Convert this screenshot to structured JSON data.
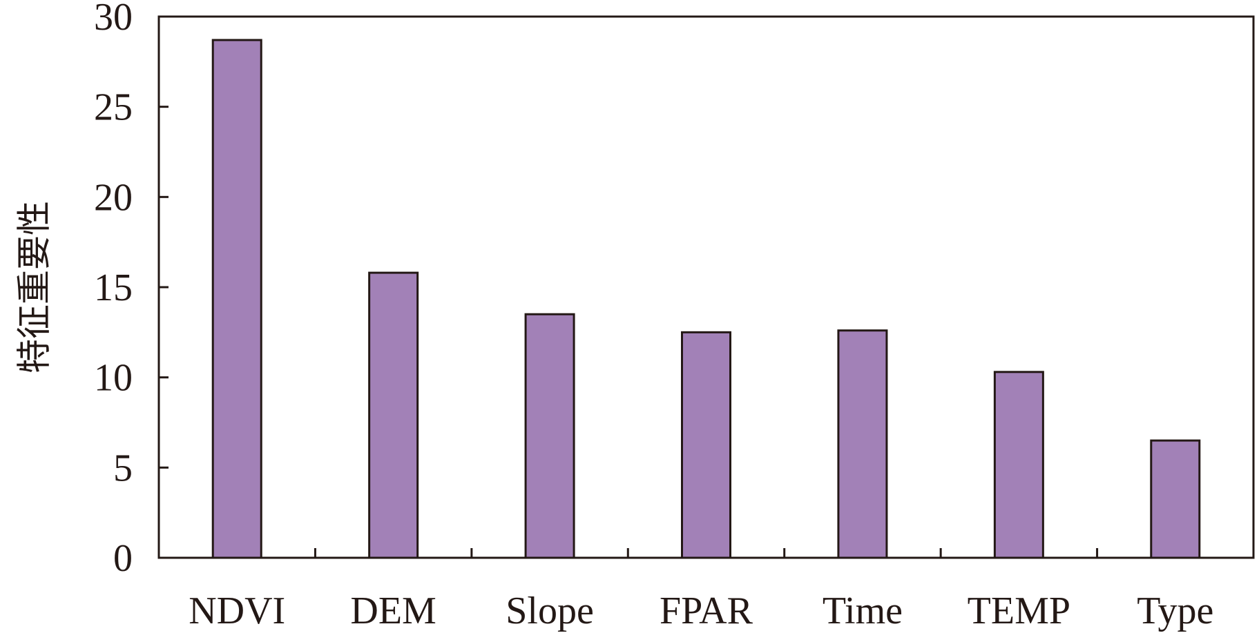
{
  "chart_data": {
    "type": "bar",
    "title": "",
    "xlabel": "",
    "ylabel": "特征重要性",
    "categories": [
      "NDVI",
      "DEM",
      "Slope",
      "FPAR",
      "Time",
      "TEMP",
      "Type"
    ],
    "values": [
      28.7,
      15.8,
      13.5,
      12.5,
      12.6,
      10.3,
      6.5
    ],
    "ylim": [
      0,
      30
    ],
    "yticks": [
      "0",
      "5",
      "10",
      "15",
      "20",
      "25",
      "30"
    ],
    "grid": false,
    "legend": "none",
    "colors": {
      "bar_fill": "#a281b7",
      "bar_stroke": "#231815",
      "axis": "#231815",
      "text": "#231815"
    }
  }
}
